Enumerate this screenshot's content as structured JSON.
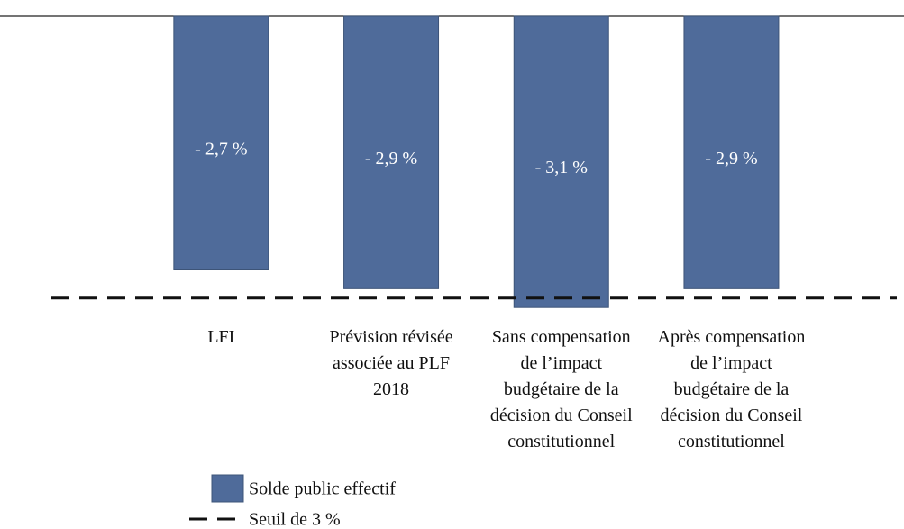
{
  "chart_data": {
    "type": "bar",
    "categories": [
      "LFI",
      "Prévision révisée associée au PLF 2018",
      "Sans compensation de l’impact budgétaire de la décision du Conseil constitutionnel",
      "Après compensation de l’impact budgétaire de la décision du Conseil constitutionnel"
    ],
    "series": [
      {
        "name": "Solde public effectif",
        "color": "#4f6b9a",
        "values": [
          -2.7,
          -2.9,
          -3.1,
          -2.9
        ],
        "value_labels": [
          "- 2,7 %",
          "- 2,9 %",
          "- 3,1 %",
          "- 2,9 %"
        ]
      }
    ],
    "threshold": {
      "value": -3,
      "label": "Seuil de 3 %"
    },
    "ylim": [
      -5.4,
      0
    ]
  }
}
